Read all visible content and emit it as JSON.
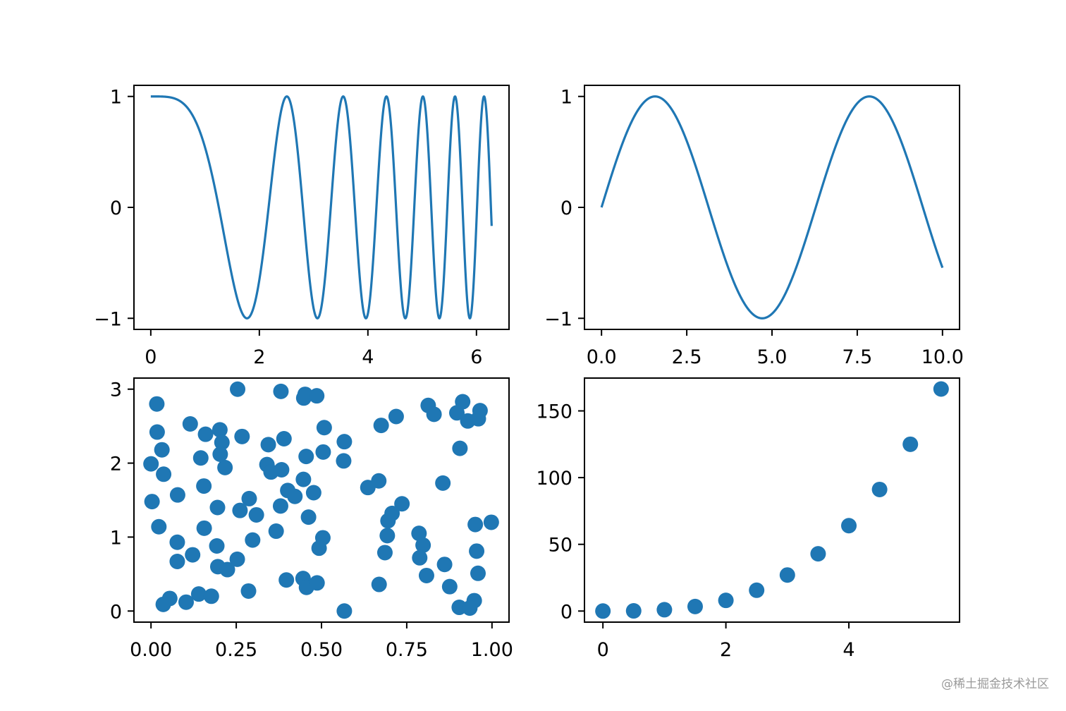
{
  "watermark": "@稀土掘金技术社区",
  "colors": {
    "series": "#1f77b4",
    "axes": "#000000",
    "background": "#ffffff"
  },
  "chart_data": [
    {
      "type": "line",
      "title": "",
      "xlabel": "",
      "ylabel": "",
      "xlim": [
        -0.31,
        6.6
      ],
      "ylim": [
        -1.1,
        1.1
      ],
      "xticks": [
        0,
        2,
        4,
        6
      ],
      "xtick_labels": [
        "0",
        "2",
        "4",
        "6"
      ],
      "yticks": [
        -1,
        0,
        1
      ],
      "ytick_labels": [
        "−1",
        "0",
        "1"
      ],
      "grid": false,
      "legend": "none",
      "series": [
        {
          "formula": "y = sin(x^2 + 1.5708)",
          "x_range": [
            0,
            6.28
          ]
        }
      ]
    },
    {
      "type": "line",
      "title": "",
      "xlabel": "",
      "ylabel": "",
      "xlim": [
        -0.5,
        10.5
      ],
      "ylim": [
        -1.1,
        1.1
      ],
      "xticks": [
        0,
        2.5,
        5,
        7.5,
        10
      ],
      "xtick_labels": [
        "0.0",
        "2.5",
        "5.0",
        "7.5",
        "10.0"
      ],
      "yticks": [
        -1,
        0,
        1
      ],
      "ytick_labels": [
        "−1",
        "0",
        "1"
      ],
      "grid": false,
      "legend": "none",
      "series": [
        {
          "formula": "y = sin(x)",
          "x_range": [
            0,
            10
          ]
        }
      ]
    },
    {
      "type": "scatter",
      "title": "",
      "xlabel": "",
      "ylabel": "",
      "xlim": [
        -0.05,
        1.05
      ],
      "ylim": [
        -0.15,
        3.15
      ],
      "xticks": [
        0,
        0.25,
        0.5,
        0.75,
        1.0
      ],
      "xtick_labels": [
        "0.00",
        "0.25",
        "0.50",
        "0.75",
        "1.00"
      ],
      "yticks": [
        0,
        1,
        2,
        3
      ],
      "ytick_labels": [
        "0",
        "1",
        "2",
        "3"
      ],
      "grid": false,
      "legend": "none",
      "points": [
        [
          0.017,
          2.8
        ],
        [
          0.018,
          2.42
        ],
        [
          0.032,
          2.18
        ],
        [
          0.037,
          1.85
        ],
        [
          0.0,
          1.99
        ],
        [
          0.003,
          1.48
        ],
        [
          0.023,
          1.14
        ],
        [
          0.078,
          1.57
        ],
        [
          0.115,
          2.53
        ],
        [
          0.16,
          2.39
        ],
        [
          0.202,
          2.45
        ],
        [
          0.208,
          2.28
        ],
        [
          0.203,
          2.12
        ],
        [
          0.217,
          1.94
        ],
        [
          0.146,
          2.07
        ],
        [
          0.155,
          1.69
        ],
        [
          0.267,
          2.36
        ],
        [
          0.254,
          3.0
        ],
        [
          0.381,
          2.97
        ],
        [
          0.448,
          2.88
        ],
        [
          0.452,
          2.93
        ],
        [
          0.486,
          2.91
        ],
        [
          0.508,
          2.48
        ],
        [
          0.39,
          2.33
        ],
        [
          0.344,
          2.25
        ],
        [
          0.505,
          2.15
        ],
        [
          0.455,
          2.09
        ],
        [
          0.34,
          1.98
        ],
        [
          0.352,
          1.88
        ],
        [
          0.383,
          1.91
        ],
        [
          0.401,
          1.63
        ],
        [
          0.422,
          1.55
        ],
        [
          0.447,
          1.78
        ],
        [
          0.477,
          1.6
        ],
        [
          0.288,
          1.52
        ],
        [
          0.195,
          1.4
        ],
        [
          0.261,
          1.36
        ],
        [
          0.309,
          1.3
        ],
        [
          0.38,
          1.42
        ],
        [
          0.156,
          1.12
        ],
        [
          0.367,
          1.08
        ],
        [
          0.462,
          1.27
        ],
        [
          0.504,
          0.99
        ],
        [
          0.493,
          0.85
        ],
        [
          0.298,
          0.96
        ],
        [
          0.193,
          0.88
        ],
        [
          0.122,
          0.76
        ],
        [
          0.077,
          0.67
        ],
        [
          0.077,
          0.93
        ],
        [
          0.253,
          0.7
        ],
        [
          0.196,
          0.6
        ],
        [
          0.224,
          0.56
        ],
        [
          0.286,
          0.27
        ],
        [
          0.397,
          0.42
        ],
        [
          0.446,
          0.44
        ],
        [
          0.456,
          0.32
        ],
        [
          0.487,
          0.38
        ],
        [
          0.14,
          0.23
        ],
        [
          0.177,
          0.2
        ],
        [
          0.055,
          0.17
        ],
        [
          0.036,
          0.09
        ],
        [
          0.103,
          0.12
        ],
        [
          0.567,
          2.29
        ],
        [
          0.565,
          2.03
        ],
        [
          0.567,
          0.0
        ],
        [
          0.636,
          1.67
        ],
        [
          0.668,
          1.76
        ],
        [
          0.675,
          2.51
        ],
        [
          0.719,
          2.63
        ],
        [
          0.736,
          1.45
        ],
        [
          0.707,
          1.32
        ],
        [
          0.695,
          1.22
        ],
        [
          0.693,
          1.02
        ],
        [
          0.686,
          0.79
        ],
        [
          0.669,
          0.36
        ],
        [
          0.786,
          1.05
        ],
        [
          0.798,
          0.89
        ],
        [
          0.788,
          0.72
        ],
        [
          0.808,
          0.48
        ],
        [
          0.813,
          2.78
        ],
        [
          0.83,
          2.66
        ],
        [
          0.856,
          1.73
        ],
        [
          0.861,
          0.63
        ],
        [
          0.876,
          0.33
        ],
        [
          0.906,
          2.2
        ],
        [
          0.897,
          2.68
        ],
        [
          0.914,
          2.83
        ],
        [
          0.929,
          2.57
        ],
        [
          0.96,
          2.6
        ],
        [
          0.965,
          2.71
        ],
        [
          0.951,
          1.17
        ],
        [
          0.998,
          1.2
        ],
        [
          0.955,
          0.81
        ],
        [
          0.959,
          0.51
        ],
        [
          0.948,
          0.14
        ],
        [
          0.904,
          0.05
        ],
        [
          0.935,
          0.04
        ]
      ]
    },
    {
      "type": "scatter",
      "title": "",
      "xlabel": "",
      "ylabel": "",
      "xlim": [
        -0.3,
        5.8
      ],
      "ylim": [
        -8.3,
        174.6
      ],
      "xticks": [
        0,
        2,
        4
      ],
      "xtick_labels": [
        "0",
        "2",
        "4"
      ],
      "yticks": [
        0,
        50,
        100,
        150
      ],
      "ytick_labels": [
        "0",
        "50",
        "100",
        "150"
      ],
      "grid": false,
      "legend": "none",
      "points": [
        [
          0.0,
          0.0
        ],
        [
          0.5,
          0.13
        ],
        [
          1.0,
          1.0
        ],
        [
          1.5,
          3.4
        ],
        [
          2.0,
          8.0
        ],
        [
          2.5,
          15.6
        ],
        [
          3.0,
          27.0
        ],
        [
          3.5,
          42.9
        ],
        [
          4.0,
          64.0
        ],
        [
          4.5,
          91.1
        ],
        [
          5.0,
          125.0
        ],
        [
          5.5,
          166.4
        ]
      ]
    }
  ]
}
